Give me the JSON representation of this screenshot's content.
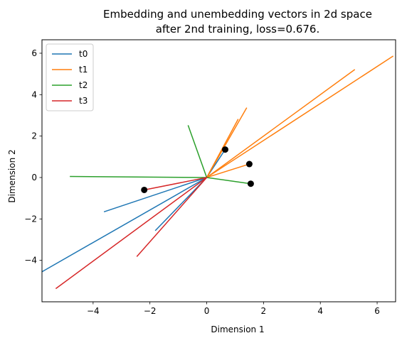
{
  "chart_data": {
    "type": "line",
    "title_line1": "Embedding and unembedding vectors in 2d space",
    "title_line2": "after 2nd training, loss=0.676.",
    "xlabel": "Dimension 1",
    "ylabel": "Dimension 2",
    "xlim": [
      -5.8,
      6.65
    ],
    "ylim": [
      -6.0,
      6.65
    ],
    "xticks": [
      -4,
      -2,
      0,
      2,
      4,
      6
    ],
    "yticks": [
      -4,
      -2,
      0,
      2,
      4,
      6
    ],
    "xtick_labels": [
      "−4",
      "−2",
      "0",
      "2",
      "4",
      "6"
    ],
    "ytick_labels": [
      "−4",
      "−2",
      "0",
      "2",
      "4",
      "6"
    ],
    "legend_position": "upper-left",
    "series": [
      {
        "name": "t0",
        "color": "#1f77b4",
        "segments": [
          [
            0,
            0,
            -5.8,
            -4.55
          ],
          [
            0,
            0,
            -3.6,
            -1.65
          ],
          [
            0,
            0,
            -1.8,
            -2.55
          ],
          [
            0,
            0,
            0.65,
            1.35
          ]
        ]
      },
      {
        "name": "t1",
        "color": "#ff7f0e",
        "segments": [
          [
            0,
            0,
            1.4,
            3.35
          ],
          [
            0,
            0,
            1.1,
            2.8
          ],
          [
            0,
            0,
            5.2,
            5.2
          ],
          [
            0,
            0,
            6.55,
            5.85
          ],
          [
            0,
            0,
            1.5,
            0.65
          ]
        ]
      },
      {
        "name": "t2",
        "color": "#2ca02c",
        "segments": [
          [
            0,
            0,
            -4.8,
            0.05
          ],
          [
            0,
            0,
            -0.65,
            2.5
          ],
          [
            0,
            0,
            1.55,
            -0.3
          ]
        ]
      },
      {
        "name": "t3",
        "color": "#d62728",
        "segments": [
          [
            0,
            0,
            -5.3,
            -5.35
          ],
          [
            0,
            0,
            -2.45,
            -3.8
          ],
          [
            0,
            0,
            -2.2,
            -0.6
          ]
        ]
      }
    ],
    "points": [
      [
        0.65,
        1.35
      ],
      [
        1.5,
        0.65
      ],
      [
        1.55,
        -0.3
      ],
      [
        -2.2,
        -0.6
      ]
    ]
  }
}
